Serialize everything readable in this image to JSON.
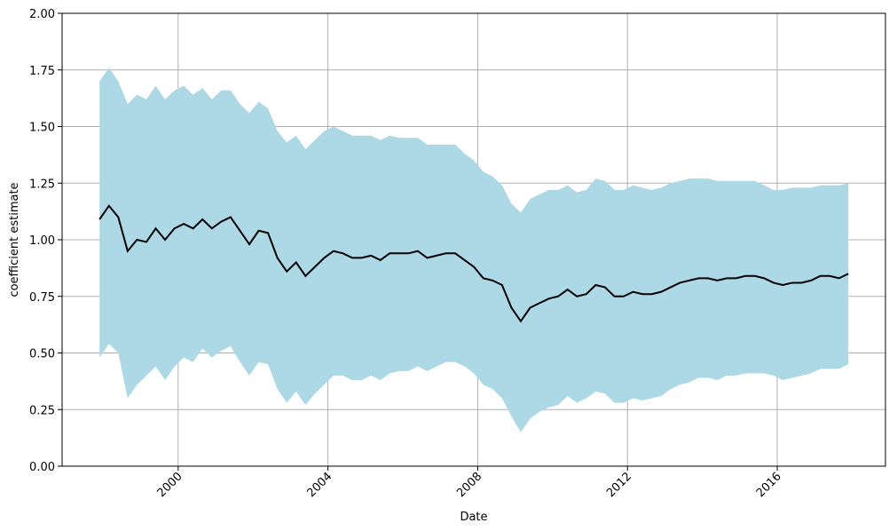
{
  "chart_data": {
    "type": "line",
    "xlabel": "Date",
    "ylabel": "coefficient estimate",
    "x": [
      1997.9,
      1998.15,
      1998.4,
      1998.65,
      1998.9,
      1999.15,
      1999.4,
      1999.65,
      1999.9,
      2000.15,
      2000.4,
      2000.65,
      2000.9,
      2001.15,
      2001.4,
      2001.65,
      2001.9,
      2002.15,
      2002.4,
      2002.65,
      2002.9,
      2003.15,
      2003.4,
      2003.65,
      2003.9,
      2004.15,
      2004.4,
      2004.65,
      2004.9,
      2005.15,
      2005.4,
      2005.65,
      2005.9,
      2006.15,
      2006.4,
      2006.65,
      2006.9,
      2007.15,
      2007.4,
      2007.65,
      2007.9,
      2008.15,
      2008.4,
      2008.65,
      2008.9,
      2009.15,
      2009.4,
      2009.65,
      2009.9,
      2010.15,
      2010.4,
      2010.65,
      2010.9,
      2011.15,
      2011.4,
      2011.65,
      2011.9,
      2012.15,
      2012.4,
      2012.65,
      2012.9,
      2013.15,
      2013.4,
      2013.65,
      2013.9,
      2014.15,
      2014.4,
      2014.65,
      2014.9,
      2015.15,
      2015.4,
      2015.65,
      2015.9,
      2016.15,
      2016.4,
      2016.65,
      2016.9,
      2017.15,
      2017.4,
      2017.65,
      2017.9
    ],
    "values": [
      1.09,
      1.15,
      1.1,
      0.95,
      1.0,
      0.99,
      1.05,
      1.0,
      1.05,
      1.07,
      1.05,
      1.09,
      1.05,
      1.08,
      1.1,
      1.04,
      0.98,
      1.04,
      1.03,
      0.92,
      0.86,
      0.9,
      0.84,
      0.88,
      0.92,
      0.95,
      0.94,
      0.92,
      0.92,
      0.93,
      0.91,
      0.94,
      0.94,
      0.94,
      0.95,
      0.92,
      0.93,
      0.94,
      0.94,
      0.91,
      0.88,
      0.83,
      0.82,
      0.8,
      0.7,
      0.64,
      0.7,
      0.72,
      0.74,
      0.75,
      0.78,
      0.75,
      0.76,
      0.8,
      0.79,
      0.75,
      0.75,
      0.77,
      0.76,
      0.76,
      0.77,
      0.79,
      0.81,
      0.82,
      0.83,
      0.83,
      0.82,
      0.83,
      0.83,
      0.84,
      0.84,
      0.83,
      0.81,
      0.8,
      0.81,
      0.81,
      0.82,
      0.84,
      0.84,
      0.83,
      0.85
    ],
    "color": "#000000",
    "band": {
      "color": "#add8e6",
      "upper": [
        1.7,
        1.76,
        1.7,
        1.6,
        1.64,
        1.62,
        1.68,
        1.62,
        1.66,
        1.68,
        1.64,
        1.67,
        1.62,
        1.66,
        1.66,
        1.6,
        1.56,
        1.61,
        1.58,
        1.48,
        1.43,
        1.46,
        1.4,
        1.44,
        1.48,
        1.5,
        1.48,
        1.46,
        1.46,
        1.46,
        1.44,
        1.46,
        1.45,
        1.45,
        1.45,
        1.42,
        1.42,
        1.42,
        1.42,
        1.38,
        1.35,
        1.3,
        1.28,
        1.24,
        1.16,
        1.12,
        1.18,
        1.2,
        1.22,
        1.22,
        1.24,
        1.21,
        1.22,
        1.27,
        1.26,
        1.22,
        1.22,
        1.24,
        1.23,
        1.22,
        1.23,
        1.25,
        1.26,
        1.27,
        1.27,
        1.27,
        1.26,
        1.26,
        1.26,
        1.26,
        1.26,
        1.24,
        1.22,
        1.22,
        1.23,
        1.23,
        1.23,
        1.24,
        1.24,
        1.24,
        1.25
      ],
      "lower": [
        0.48,
        0.54,
        0.5,
        0.3,
        0.36,
        0.4,
        0.44,
        0.38,
        0.44,
        0.48,
        0.46,
        0.52,
        0.48,
        0.51,
        0.53,
        0.46,
        0.4,
        0.46,
        0.45,
        0.34,
        0.28,
        0.33,
        0.27,
        0.32,
        0.36,
        0.4,
        0.4,
        0.38,
        0.38,
        0.4,
        0.38,
        0.41,
        0.42,
        0.42,
        0.44,
        0.42,
        0.44,
        0.46,
        0.46,
        0.44,
        0.41,
        0.36,
        0.34,
        0.3,
        0.22,
        0.15,
        0.21,
        0.24,
        0.26,
        0.27,
        0.31,
        0.28,
        0.3,
        0.33,
        0.32,
        0.28,
        0.28,
        0.3,
        0.29,
        0.3,
        0.31,
        0.34,
        0.36,
        0.37,
        0.39,
        0.39,
        0.38,
        0.4,
        0.4,
        0.41,
        0.41,
        0.41,
        0.4,
        0.38,
        0.39,
        0.4,
        0.41,
        0.43,
        0.43,
        0.43,
        0.45
      ]
    },
    "xlim": [
      1996.9,
      2018.89
    ],
    "xticks": [
      2000,
      2004,
      2008,
      2012,
      2016
    ],
    "ylim": [
      0,
      2
    ],
    "yticks": [
      {
        "value": 0,
        "label": "0.00"
      },
      {
        "value": 0.25,
        "label": "0.25"
      },
      {
        "value": 0.5,
        "label": "0.50"
      },
      {
        "value": 0.75,
        "label": "0.75"
      },
      {
        "value": 1,
        "label": "1.00"
      },
      {
        "value": 1.25,
        "label": "1.25"
      },
      {
        "value": 1.5,
        "label": "1.50"
      },
      {
        "value": 1.75,
        "label": "1.75"
      },
      {
        "value": 2,
        "label": "2.00"
      }
    ],
    "grid": true
  }
}
